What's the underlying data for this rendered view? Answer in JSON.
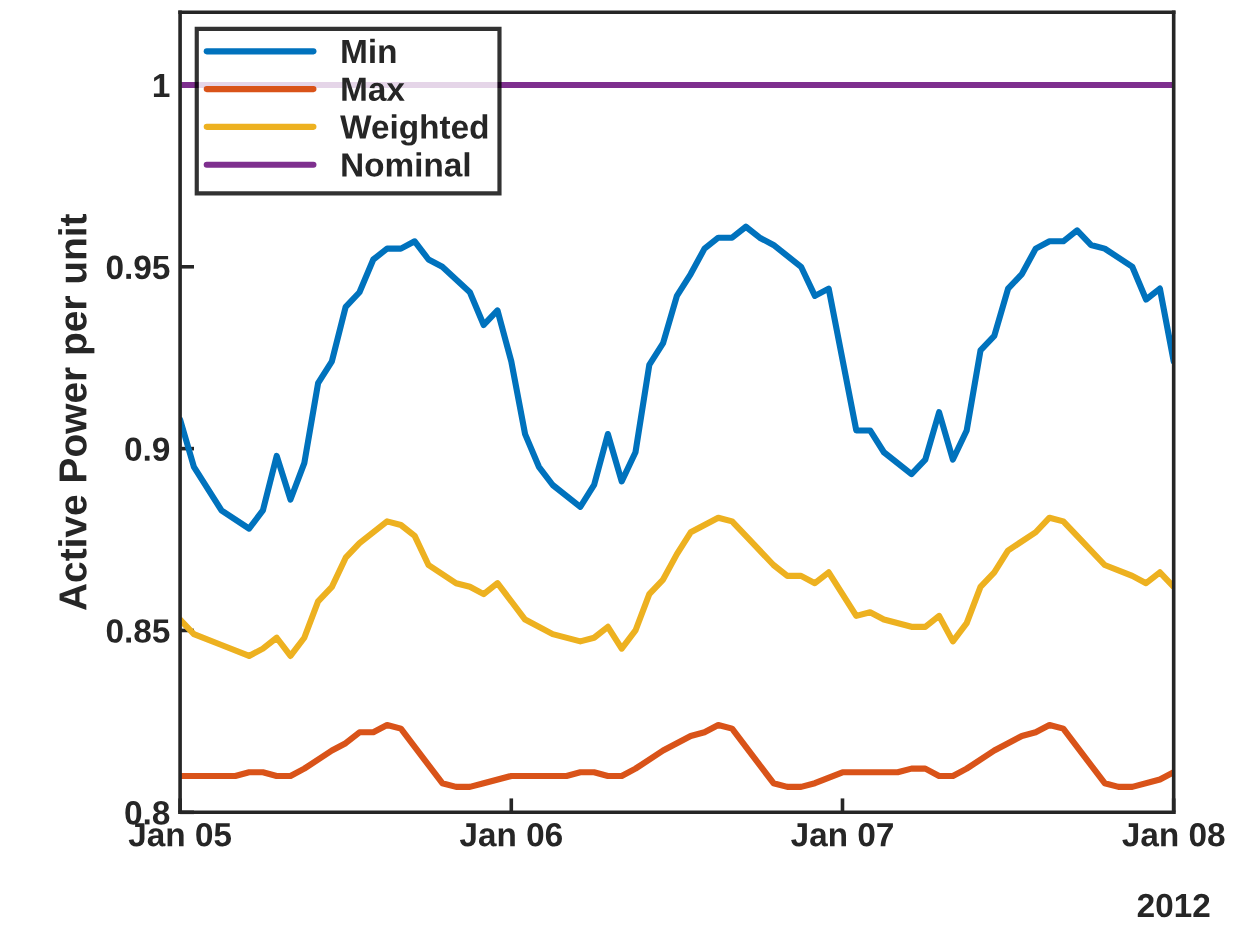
{
  "chart_data": {
    "type": "line",
    "ylabel": "Active Power per unit",
    "xlim": [
      "2012-01-05",
      "2012-01-08"
    ],
    "xticks": [
      {
        "value": "2012-01-05",
        "label": "Jan 05"
      },
      {
        "value": "2012-01-06",
        "label": "Jan 06"
      },
      {
        "value": "2012-01-07",
        "label": "Jan 07"
      },
      {
        "value": "2012-01-08",
        "label": "Jan 08"
      }
    ],
    "ylim": [
      0.8,
      1.02
    ],
    "yticks": [
      0.8,
      0.85,
      0.9,
      0.95,
      1
    ],
    "grid": false,
    "legend": "top left",
    "marker": "none",
    "line_style": "solid",
    "annotations": [
      "2012"
    ],
    "series": [
      {
        "name": "Min",
        "color": "#0072bd",
        "x": [
          "2012-01-05T00:00",
          "2012-01-05T01:00",
          "2012-01-05T03:00",
          "2012-01-05T05:00",
          "2012-01-05T06:00",
          "2012-01-05T07:00",
          "2012-01-05T08:00",
          "2012-01-05T09:00",
          "2012-01-05T10:00",
          "2012-01-05T11:00",
          "2012-01-05T12:00",
          "2012-01-05T13:00",
          "2012-01-05T14:00",
          "2012-01-05T15:00",
          "2012-01-05T16:00",
          "2012-01-05T17:00",
          "2012-01-05T18:00",
          "2012-01-05T19:00",
          "2012-01-05T21:00",
          "2012-01-05T22:00",
          "2012-01-05T23:00",
          "2012-01-06T00:00",
          "2012-01-06T01:00",
          "2012-01-06T02:00",
          "2012-01-06T03:00",
          "2012-01-06T05:00",
          "2012-01-06T06:00",
          "2012-01-06T07:00",
          "2012-01-06T08:00",
          "2012-01-06T09:00",
          "2012-01-06T10:00",
          "2012-01-06T11:00",
          "2012-01-06T12:00",
          "2012-01-06T13:00",
          "2012-01-06T14:00",
          "2012-01-06T15:00",
          "2012-01-06T16:00",
          "2012-01-06T17:00",
          "2012-01-06T18:00",
          "2012-01-06T19:00",
          "2012-01-06T21:00",
          "2012-01-06T22:00",
          "2012-01-06T23:00",
          "2012-01-07T01:00",
          "2012-01-07T02:00",
          "2012-01-07T03:00",
          "2012-01-07T05:00",
          "2012-01-07T06:00",
          "2012-01-07T07:00",
          "2012-01-07T08:00",
          "2012-01-07T09:00",
          "2012-01-07T10:00",
          "2012-01-07T11:00",
          "2012-01-07T12:00",
          "2012-01-07T13:00",
          "2012-01-07T14:00",
          "2012-01-07T15:00",
          "2012-01-07T16:00",
          "2012-01-07T17:00",
          "2012-01-07T18:00",
          "2012-01-07T19:00",
          "2012-01-07T21:00",
          "2012-01-07T22:00",
          "2012-01-07T23:00",
          "2012-01-08T00:00"
        ],
        "values": [
          0.908,
          0.895,
          0.883,
          0.878,
          0.883,
          0.898,
          0.886,
          0.896,
          0.918,
          0.924,
          0.939,
          0.943,
          0.952,
          0.955,
          0.955,
          0.957,
          0.952,
          0.95,
          0.943,
          0.934,
          0.938,
          0.924,
          0.904,
          0.895,
          0.89,
          0.884,
          0.89,
          0.904,
          0.891,
          0.899,
          0.923,
          0.929,
          0.942,
          0.948,
          0.955,
          0.958,
          0.958,
          0.961,
          0.958,
          0.956,
          0.95,
          0.942,
          0.944,
          0.905,
          0.905,
          0.899,
          0.893,
          0.897,
          0.91,
          0.897,
          0.905,
          0.927,
          0.931,
          0.944,
          0.948,
          0.955,
          0.957,
          0.957,
          0.96,
          0.956,
          0.955,
          0.95,
          0.941,
          0.944,
          0.924
        ]
      },
      {
        "name": "Max",
        "color": "#d95319",
        "x": [
          "2012-01-05T00:00",
          "2012-01-05T04:00",
          "2012-01-05T05:00",
          "2012-01-05T06:00",
          "2012-01-05T07:00",
          "2012-01-05T08:00",
          "2012-01-05T09:00",
          "2012-01-05T11:00",
          "2012-01-05T12:00",
          "2012-01-05T13:00",
          "2012-01-05T14:00",
          "2012-01-05T15:00",
          "2012-01-05T16:00",
          "2012-01-05T19:00",
          "2012-01-05T20:00",
          "2012-01-05T21:00",
          "2012-01-05T22:00",
          "2012-01-06T00:00",
          "2012-01-06T04:00",
          "2012-01-06T05:00",
          "2012-01-06T06:00",
          "2012-01-06T07:00",
          "2012-01-06T08:00",
          "2012-01-06T09:00",
          "2012-01-06T11:00",
          "2012-01-06T12:00",
          "2012-01-06T13:00",
          "2012-01-06T14:00",
          "2012-01-06T15:00",
          "2012-01-06T16:00",
          "2012-01-06T19:00",
          "2012-01-06T20:00",
          "2012-01-06T21:00",
          "2012-01-06T22:00",
          "2012-01-07T00:00",
          "2012-01-07T04:00",
          "2012-01-07T05:00",
          "2012-01-07T06:00",
          "2012-01-07T07:00",
          "2012-01-07T08:00",
          "2012-01-07T09:00",
          "2012-01-07T11:00",
          "2012-01-07T12:00",
          "2012-01-07T13:00",
          "2012-01-07T14:00",
          "2012-01-07T15:00",
          "2012-01-07T16:00",
          "2012-01-07T19:00",
          "2012-01-07T20:00",
          "2012-01-07T21:00",
          "2012-01-07T23:00",
          "2012-01-08T00:00"
        ],
        "values": [
          0.81,
          0.81,
          0.811,
          0.811,
          0.81,
          0.81,
          0.812,
          0.817,
          0.819,
          0.822,
          0.822,
          0.824,
          0.823,
          0.808,
          0.807,
          0.807,
          0.808,
          0.81,
          0.81,
          0.811,
          0.811,
          0.81,
          0.81,
          0.812,
          0.817,
          0.819,
          0.821,
          0.822,
          0.824,
          0.823,
          0.808,
          0.807,
          0.807,
          0.808,
          0.811,
          0.811,
          0.812,
          0.812,
          0.81,
          0.81,
          0.812,
          0.817,
          0.819,
          0.821,
          0.822,
          0.824,
          0.823,
          0.808,
          0.807,
          0.807,
          0.809,
          0.811
        ]
      },
      {
        "name": "Weighted",
        "color": "#edb120",
        "x": [
          "2012-01-05T00:00",
          "2012-01-05T01:00",
          "2012-01-05T03:00",
          "2012-01-05T05:00",
          "2012-01-05T06:00",
          "2012-01-05T07:00",
          "2012-01-05T08:00",
          "2012-01-05T09:00",
          "2012-01-05T10:00",
          "2012-01-05T11:00",
          "2012-01-05T12:00",
          "2012-01-05T13:00",
          "2012-01-05T15:00",
          "2012-01-05T16:00",
          "2012-01-05T17:00",
          "2012-01-05T18:00",
          "2012-01-05T20:00",
          "2012-01-05T21:00",
          "2012-01-05T22:00",
          "2012-01-05T23:00",
          "2012-01-06T01:00",
          "2012-01-06T03:00",
          "2012-01-06T05:00",
          "2012-01-06T06:00",
          "2012-01-06T07:00",
          "2012-01-06T08:00",
          "2012-01-06T09:00",
          "2012-01-06T10:00",
          "2012-01-06T11:00",
          "2012-01-06T12:00",
          "2012-01-06T13:00",
          "2012-01-06T15:00",
          "2012-01-06T16:00",
          "2012-01-06T17:00",
          "2012-01-06T19:00",
          "2012-01-06T20:00",
          "2012-01-06T21:00",
          "2012-01-06T22:00",
          "2012-01-06T23:00",
          "2012-01-07T01:00",
          "2012-01-07T02:00",
          "2012-01-07T03:00",
          "2012-01-07T05:00",
          "2012-01-07T06:00",
          "2012-01-07T07:00",
          "2012-01-07T08:00",
          "2012-01-07T09:00",
          "2012-01-07T10:00",
          "2012-01-07T11:00",
          "2012-01-07T12:00",
          "2012-01-07T14:00",
          "2012-01-07T15:00",
          "2012-01-07T16:00",
          "2012-01-07T17:00",
          "2012-01-07T19:00",
          "2012-01-07T21:00",
          "2012-01-07T22:00",
          "2012-01-07T23:00",
          "2012-01-08T00:00"
        ],
        "values": [
          0.853,
          0.849,
          0.846,
          0.843,
          0.845,
          0.848,
          0.843,
          0.848,
          0.858,
          0.862,
          0.87,
          0.874,
          0.88,
          0.879,
          0.876,
          0.868,
          0.863,
          0.862,
          0.86,
          0.863,
          0.853,
          0.849,
          0.847,
          0.848,
          0.851,
          0.845,
          0.85,
          0.86,
          0.864,
          0.871,
          0.877,
          0.881,
          0.88,
          0.876,
          0.868,
          0.865,
          0.865,
          0.863,
          0.866,
          0.854,
          0.855,
          0.853,
          0.851,
          0.851,
          0.854,
          0.847,
          0.852,
          0.862,
          0.866,
          0.872,
          0.877,
          0.881,
          0.88,
          0.876,
          0.868,
          0.865,
          0.863,
          0.866,
          0.862
        ]
      },
      {
        "name": "Nominal",
        "color": "#7e2f8e",
        "x": [
          "2012-01-05T00:00",
          "2012-01-08T00:00"
        ],
        "values": [
          1,
          1
        ]
      }
    ]
  }
}
